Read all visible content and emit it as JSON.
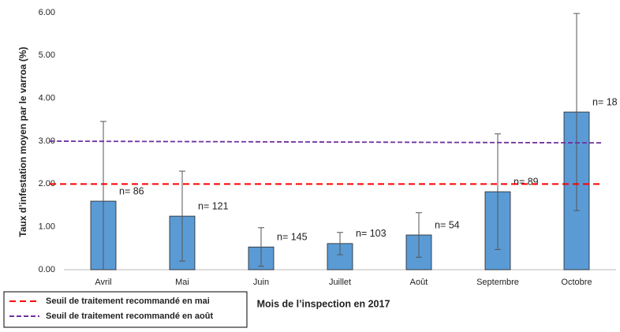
{
  "chart_data": {
    "type": "bar",
    "y_label": "Taux d’infestation moyen par le varroa (%)",
    "x_label": "Mois de l’inspection en 2017",
    "categories": [
      "Avril",
      "Mai",
      "Juin",
      "Juillet",
      "Août",
      "Septembre",
      "Octobre"
    ],
    "values": [
      1.6,
      1.25,
      0.53,
      0.61,
      0.81,
      1.82,
      3.68
    ],
    "errors": [
      1.86,
      1.05,
      0.45,
      0.26,
      0.52,
      1.35,
      2.3
    ],
    "n_labels": [
      "n= 86",
      "n= 121",
      "n= 145",
      "n= 103",
      "n= 54",
      "n= 89",
      "n= 18"
    ],
    "color": "#5b9bd5",
    "ylim": [
      0,
      6
    ],
    "yticks": [
      {
        "value": 0,
        "label": "0.00"
      },
      {
        "value": 1,
        "label": "1.00"
      },
      {
        "value": 2,
        "label": "2.00"
      },
      {
        "value": 3,
        "label": "3.00"
      },
      {
        "value": 4,
        "label": "4.00"
      },
      {
        "value": 5,
        "label": "5.00"
      },
      {
        "value": 6,
        "label": "6.00"
      }
    ],
    "reference_lines": [
      {
        "name": "Seuil de traitement recommandé en mai",
        "color": "#ff0000",
        "values": [
          2.0,
          2.0
        ]
      },
      {
        "name": "Seuil de traitement recommandé en août",
        "color": "#7030a0",
        "values": [
          3.0,
          2.96
        ]
      }
    ]
  }
}
